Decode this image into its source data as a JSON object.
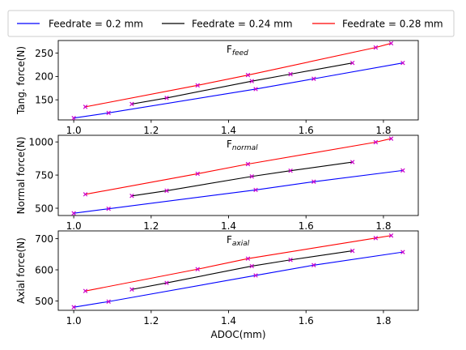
{
  "legend": {
    "entries": [
      {
        "name": "Feedrate = 0.2 mm",
        "color": "#0000ff"
      },
      {
        "name": "Feedrate = 0.24 mm",
        "color": "#000000"
      },
      {
        "name": "Feedrate = 0.28 mm",
        "color": "#ff0000"
      }
    ]
  },
  "marker_color": "#cc00cc",
  "chart_data": [
    {
      "type": "line",
      "title": "F",
      "title_sub": "feed",
      "xlabel": "",
      "ylabel": "Tang. force(N)",
      "xlim": [
        0.96,
        1.89
      ],
      "ylim": [
        107,
        277
      ],
      "xticks": [
        "1.0",
        "1.2",
        "1.4",
        "1.6",
        "1.8"
      ],
      "yticks": [
        "150",
        "200",
        "250"
      ],
      "series": [
        {
          "name": "Feedrate = 0.2 mm",
          "x": [
            1.0,
            1.09,
            1.47,
            1.62,
            1.85
          ],
          "y": [
            111,
            122,
            173,
            195,
            229
          ]
        },
        {
          "name": "Feedrate = 0.24 mm",
          "x": [
            1.15,
            1.24,
            1.46,
            1.56,
            1.72
          ],
          "y": [
            141,
            154,
            190,
            205,
            229
          ]
        },
        {
          "name": "Feedrate = 0.28 mm",
          "x": [
            1.03,
            1.32,
            1.45,
            1.78,
            1.82
          ],
          "y": [
            135,
            181,
            203,
            262,
            271
          ]
        }
      ]
    },
    {
      "type": "line",
      "title": "F",
      "title_sub": "normal",
      "xlabel": "",
      "ylabel": "Normal force(N)",
      "xlim": [
        0.96,
        1.89
      ],
      "ylim": [
        445,
        1050
      ],
      "xticks": [
        "1.0",
        "1.2",
        "1.4",
        "1.6",
        "1.8"
      ],
      "yticks": [
        "500",
        "750",
        "1000"
      ],
      "series": [
        {
          "name": "Feedrate = 0.2 mm",
          "x": [
            1.0,
            1.09,
            1.47,
            1.62,
            1.85
          ],
          "y": [
            462,
            496,
            638,
            700,
            785
          ]
        },
        {
          "name": "Feedrate = 0.24 mm",
          "x": [
            1.15,
            1.24,
            1.46,
            1.56,
            1.72
          ],
          "y": [
            593,
            632,
            740,
            783,
            848
          ]
        },
        {
          "name": "Feedrate = 0.28 mm",
          "x": [
            1.03,
            1.32,
            1.45,
            1.78,
            1.82
          ],
          "y": [
            605,
            760,
            833,
            998,
            1025
          ]
        }
      ]
    },
    {
      "type": "line",
      "title": "F",
      "title_sub": "axial",
      "xlabel": "ADOC(mm)",
      "ylabel": "Axial force(N)",
      "xlim": [
        0.96,
        1.89
      ],
      "ylim": [
        470,
        725
      ],
      "xticks": [
        "1.0",
        "1.2",
        "1.4",
        "1.6",
        "1.8"
      ],
      "yticks": [
        "500",
        "600",
        "700"
      ],
      "series": [
        {
          "name": "Feedrate = 0.2 mm",
          "x": [
            1.0,
            1.09,
            1.47,
            1.62,
            1.85
          ],
          "y": [
            480,
            498,
            582,
            615,
            657
          ]
        },
        {
          "name": "Feedrate = 0.24 mm",
          "x": [
            1.15,
            1.24,
            1.46,
            1.56,
            1.72
          ],
          "y": [
            537,
            558,
            612,
            632,
            661
          ]
        },
        {
          "name": "Feedrate = 0.28 mm",
          "x": [
            1.03,
            1.32,
            1.45,
            1.78,
            1.82
          ],
          "y": [
            532,
            602,
            636,
            702,
            710
          ]
        }
      ]
    }
  ]
}
